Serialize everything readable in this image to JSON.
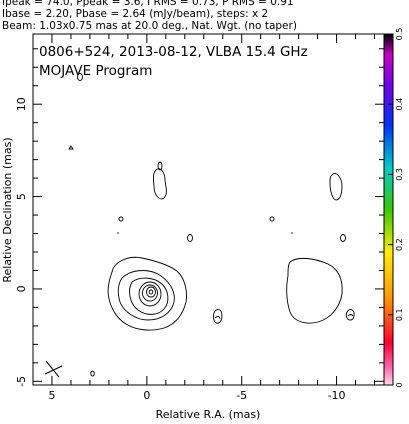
{
  "header": {
    "line1": "Ipeak = 74.0, Ppeak = 3.6, I RMS = 0.73, P RMS = 0.91",
    "line2": "Ibase = 2.20, Pbase = 2.64 (mJy/beam), steps: x 2",
    "line3": "Beam: 1.03x0.75 mas at 20.0 deg., Nat. Wgt. (no taper)"
  },
  "panel": {
    "title_line1": "0806+524, 2013-08-12, VLBA 15.4 GHz",
    "title_line2": "MOJAVE Program"
  },
  "chart_data": {
    "type": "contour",
    "xlabel": "Relative R.A. (mas)",
    "ylabel": "Relative Declination (mas)",
    "xlim": [
      6.0,
      -12.5
    ],
    "ylim": [
      -5.2,
      13.8
    ],
    "xticks": [
      5,
      0,
      -5,
      -10
    ],
    "xtick_labels": [
      "5",
      "0",
      "-5",
      "-10"
    ],
    "yticks": [
      -5,
      0,
      5,
      10
    ],
    "ytick_labels": [
      "-5",
      "0",
      "5",
      "10"
    ],
    "contour_levels_base_mJy_per_beam": 2.2,
    "contour_step_factor": 2,
    "core": {
      "x": 0.0,
      "y": 0.0
    },
    "beam": {
      "major_mas": 1.03,
      "minor_mas": 0.75,
      "pa_deg": 20.0
    },
    "colorbar": {
      "range": [
        0,
        0.5
      ],
      "ticks": [
        0,
        0.1,
        0.2,
        0.3,
        0.4,
        0.5
      ],
      "tick_labels": [
        "0",
        "0.1",
        "0.2",
        "0.3",
        "0.4",
        "0.5"
      ]
    }
  }
}
